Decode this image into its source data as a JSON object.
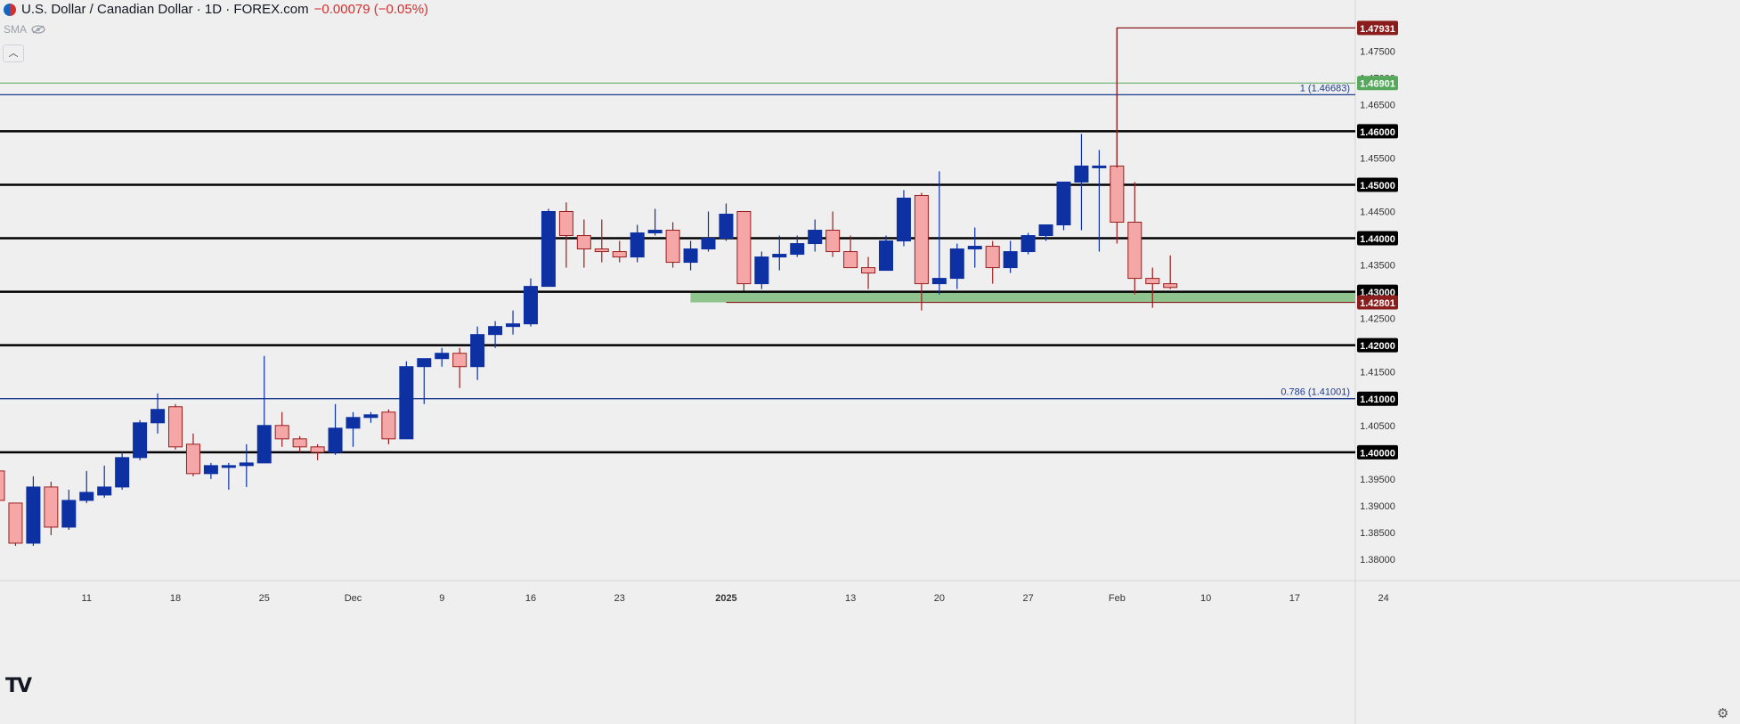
{
  "header": {
    "title": "U.S. Dollar / Canadian Dollar · 1D · FOREX.com",
    "change": "−0.00079 (−0.05%)",
    "indicator": "SMA",
    "collapse_icon": "chevron-up-icon",
    "logo": "TV"
  },
  "colors": {
    "up_body": "#0d31a3",
    "down_body": "#f5a6a6",
    "down_wick": "#9c1d1d",
    "level_line": "#000000",
    "fib_line": "#1e3d8f",
    "support_zone": "#8fc48f",
    "current_price_label": "#8a1c1c",
    "green_label": "#56a95c"
  },
  "chart_data": {
    "type": "candlestick",
    "ylim": [
      1.378,
      1.4832
    ],
    "x_ticks": [
      {
        "label": "11",
        "bar": 5
      },
      {
        "label": "18",
        "bar": 10
      },
      {
        "label": "25",
        "bar": 15
      },
      {
        "label": "Dec",
        "bar": 20
      },
      {
        "label": "9",
        "bar": 25
      },
      {
        "label": "16",
        "bar": 30
      },
      {
        "label": "23",
        "bar": 35
      },
      {
        "label": "2025",
        "bar": 41,
        "bold": true
      },
      {
        "label": "13",
        "bar": 48
      },
      {
        "label": "20",
        "bar": 53
      },
      {
        "label": "27",
        "bar": 58
      },
      {
        "label": "Feb",
        "bar": 63
      },
      {
        "label": "10",
        "bar": 68
      },
      {
        "label": "17",
        "bar": 73
      },
      {
        "label": "24",
        "bar": 78
      }
    ],
    "y_ticks": [
      "1.47500",
      "1.47000",
      "1.46500",
      "1.45500",
      "1.44500",
      "1.43500",
      "1.42500",
      "1.41500",
      "1.40500",
      "1.39500",
      "1.39000",
      "1.38500",
      "1.38000"
    ],
    "horizontal_levels": [
      {
        "price": 1.46,
        "label": "1.46000"
      },
      {
        "price": 1.45,
        "label": "1.45000"
      },
      {
        "price": 1.44,
        "label": "1.44000"
      },
      {
        "price": 1.43,
        "label": "1.43000"
      },
      {
        "price": 1.42,
        "label": "1.42000"
      },
      {
        "price": 1.4,
        "label": "1.40000"
      }
    ],
    "fib_levels": [
      {
        "price": 1.46683,
        "text": "1 (1.46683)"
      },
      {
        "price": 1.41001,
        "text": "0.786 (1.41001)",
        "axis_label": "1.41000"
      }
    ],
    "green_line": {
      "price": 1.46901,
      "label": "1.46901"
    },
    "support_zone": {
      "top": 1.43,
      "bottom": 1.42801,
      "from_bar": 41,
      "label": "1.42801"
    },
    "price_marker": {
      "price": 1.47931,
      "label": "1.47931",
      "from_bar": 63
    },
    "candles": [
      [
        1.3965,
        1.3965,
        1.389,
        1.391
      ],
      [
        1.3905,
        1.3905,
        1.3825,
        1.383
      ],
      [
        1.383,
        1.3955,
        1.3825,
        1.3935
      ],
      [
        1.3935,
        1.3945,
        1.3845,
        1.386
      ],
      [
        1.386,
        1.393,
        1.3855,
        1.391
      ],
      [
        1.391,
        1.3965,
        1.3905,
        1.3925
      ],
      [
        1.392,
        1.3975,
        1.3915,
        1.3935
      ],
      [
        1.3935,
        1.4,
        1.393,
        1.399
      ],
      [
        1.399,
        1.406,
        1.3985,
        1.4055
      ],
      [
        1.4055,
        1.411,
        1.4035,
        1.408
      ],
      [
        1.4085,
        1.409,
        1.4005,
        1.401
      ],
      [
        1.4015,
        1.4035,
        1.3955,
        1.396
      ],
      [
        1.396,
        1.398,
        1.395,
        1.3975
      ],
      [
        1.3975,
        1.398,
        1.393,
        1.3975
      ],
      [
        1.3975,
        1.4015,
        1.3935,
        1.398
      ],
      [
        1.398,
        1.418,
        1.398,
        1.405
      ],
      [
        1.405,
        1.4075,
        1.401,
        1.4025
      ],
      [
        1.4025,
        1.403,
        1.4,
        1.401
      ],
      [
        1.401,
        1.4015,
        1.3985,
        1.4
      ],
      [
        1.4,
        1.409,
        1.3995,
        1.4045
      ],
      [
        1.4045,
        1.4075,
        1.401,
        1.4065
      ],
      [
        1.4065,
        1.4075,
        1.4055,
        1.407
      ],
      [
        1.4075,
        1.408,
        1.4015,
        1.4025
      ],
      [
        1.4025,
        1.417,
        1.4025,
        1.416
      ],
      [
        1.416,
        1.417,
        1.409,
        1.4175
      ],
      [
        1.4175,
        1.4195,
        1.416,
        1.4185
      ],
      [
        1.4185,
        1.4195,
        1.412,
        1.416
      ],
      [
        1.416,
        1.4235,
        1.4135,
        1.422
      ],
      [
        1.422,
        1.4245,
        1.4195,
        1.4235
      ],
      [
        1.4235,
        1.4265,
        1.422,
        1.424
      ],
      [
        1.424,
        1.4325,
        1.4235,
        1.431
      ],
      [
        1.431,
        1.4455,
        1.431,
        1.445
      ],
      [
        1.445,
        1.4467,
        1.4345,
        1.4405
      ],
      [
        1.4405,
        1.4435,
        1.4345,
        1.438
      ],
      [
        1.438,
        1.4435,
        1.4355,
        1.4375
      ],
      [
        1.4375,
        1.4395,
        1.4355,
        1.4365
      ],
      [
        1.4365,
        1.4425,
        1.4355,
        1.441
      ],
      [
        1.441,
        1.4455,
        1.4405,
        1.4415
      ],
      [
        1.4415,
        1.443,
        1.4345,
        1.4355
      ],
      [
        1.4355,
        1.4395,
        1.434,
        1.438
      ],
      [
        1.438,
        1.445,
        1.4375,
        1.44
      ],
      [
        1.44,
        1.4465,
        1.4395,
        1.4445
      ],
      [
        1.445,
        1.445,
        1.4302,
        1.4315
      ],
      [
        1.4315,
        1.4375,
        1.4305,
        1.4365
      ],
      [
        1.4365,
        1.4405,
        1.434,
        1.437
      ],
      [
        1.437,
        1.4405,
        1.4365,
        1.439
      ],
      [
        1.439,
        1.4435,
        1.4375,
        1.4415
      ],
      [
        1.4415,
        1.445,
        1.4365,
        1.4375
      ],
      [
        1.4375,
        1.4405,
        1.4345,
        1.4345
      ],
      [
        1.4345,
        1.4365,
        1.4305,
        1.4335
      ],
      [
        1.434,
        1.4405,
        1.434,
        1.4395
      ],
      [
        1.4395,
        1.449,
        1.4385,
        1.4475
      ],
      [
        1.448,
        1.4485,
        1.4265,
        1.4315
      ],
      [
        1.4315,
        1.4525,
        1.4295,
        1.4325
      ],
      [
        1.4325,
        1.439,
        1.4305,
        1.438
      ],
      [
        1.438,
        1.442,
        1.4345,
        1.4385
      ],
      [
        1.4385,
        1.4395,
        1.4315,
        1.4345
      ],
      [
        1.4345,
        1.4395,
        1.4335,
        1.4375
      ],
      [
        1.4375,
        1.441,
        1.437,
        1.4405
      ],
      [
        1.4405,
        1.4425,
        1.4395,
        1.4425
      ],
      [
        1.4425,
        1.4495,
        1.4415,
        1.4505
      ],
      [
        1.4505,
        1.4595,
        1.4415,
        1.4535
      ],
      [
        1.4535,
        1.4565,
        1.4375,
        1.4535
      ],
      [
        1.4535,
        1.4793,
        1.439,
        1.443
      ],
      [
        1.443,
        1.4505,
        1.4295,
        1.4325
      ],
      [
        1.4325,
        1.4345,
        1.427,
        1.4315
      ],
      [
        1.4315,
        1.4368,
        1.4305,
        1.4308
      ]
    ]
  }
}
